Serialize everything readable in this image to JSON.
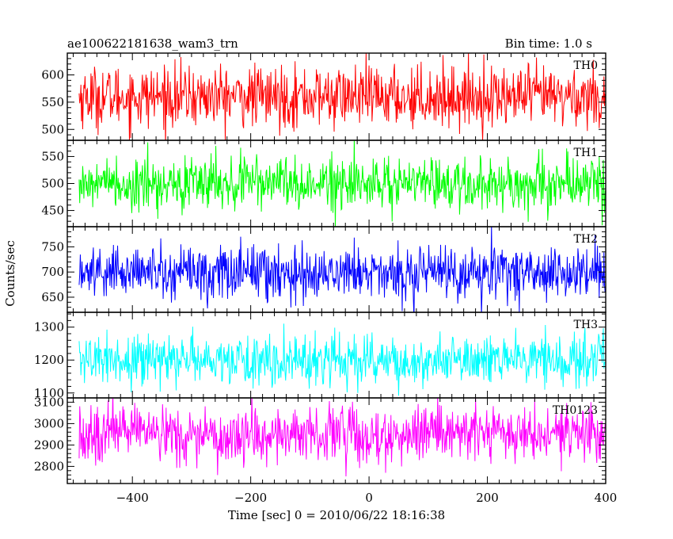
{
  "chart_data": {
    "type": "line",
    "title_left": "ae100622181638_wam3_trn",
    "title_right": "Bin time: 1.0 s",
    "xlabel": "Time [sec] 0 = 2010/06/22 18:16:38",
    "ylabel": "Counts/sec",
    "x_range": [
      -510,
      400
    ],
    "x_ticks": [
      -400,
      -200,
      0,
      200,
      400
    ],
    "x_tick_labels": [
      "−400",
      "−200",
      "0",
      "200",
      "400"
    ],
    "bin_time": 1.0,
    "series": [
      {
        "name": "TH0",
        "color": "#ff0000",
        "ylim": [
          480,
          640
        ],
        "mean": 560,
        "sd": 28,
        "y_ticks": [
          500,
          550,
          600
        ],
        "y_tick_labels": [
          "500",
          "550",
          "600"
        ]
      },
      {
        "name": "TH1",
        "color": "#00ff00",
        "ylim": [
          420,
          580
        ],
        "mean": 500,
        "sd": 25,
        "y_ticks": [
          450,
          500,
          550
        ],
        "y_tick_labels": [
          "450",
          "500",
          "550"
        ]
      },
      {
        "name": "TH2",
        "color": "#0000ff",
        "ylim": [
          620,
          790
        ],
        "mean": 700,
        "sd": 27,
        "y_ticks": [
          650,
          700,
          750
        ],
        "y_tick_labels": [
          "650",
          "700",
          "750"
        ]
      },
      {
        "name": "TH3",
        "color": "#00ffff",
        "ylim": [
          1085,
          1345
        ],
        "mean": 1200,
        "sd": 38,
        "y_ticks": [
          1100,
          1200,
          1300
        ],
        "y_tick_labels": [
          "1100",
          "1200",
          "1300"
        ]
      },
      {
        "name": "TH0123",
        "color": "#ff00ff",
        "ylim": [
          2720,
          3120
        ],
        "mean": 2950,
        "sd": 65,
        "y_ticks": [
          2800,
          2900,
          3000,
          3100
        ],
        "y_tick_labels": [
          "2800",
          "2900",
          "3000",
          "3100"
        ]
      }
    ]
  }
}
